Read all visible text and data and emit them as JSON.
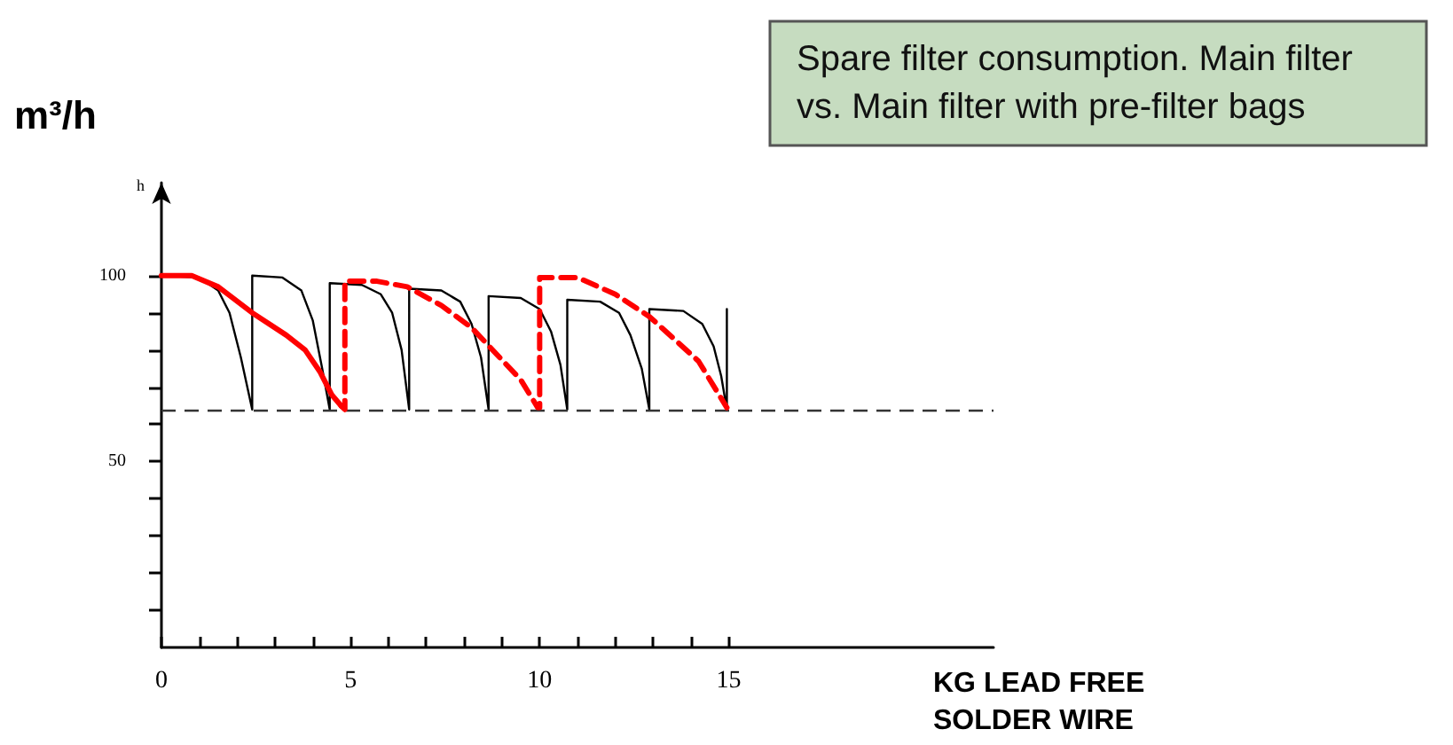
{
  "chart_data": {
    "type": "line",
    "title": "Spare filter consumption. Main filter vs. Main filter with pre-filter bags",
    "xlabel": "KG LEAD FREE SOLDER WIRE",
    "ylabel": "m³/h",
    "annotations": [
      "h"
    ],
    "xlim": [
      0,
      22
    ],
    "xticks": [
      0,
      {
        "value": 1,
        "label": null
      },
      {
        "value": 2,
        "label": null
      },
      {
        "value": 3,
        "label": null
      },
      {
        "value": 4,
        "label": null
      },
      5,
      {
        "value": 6,
        "label": null
      },
      {
        "value": 7,
        "label": null
      },
      {
        "value": 8,
        "label": null
      },
      {
        "value": 9,
        "label": null
      },
      10,
      {
        "value": 11,
        "label": null
      },
      {
        "value": 12,
        "label": null
      },
      {
        "value": 13,
        "label": null
      },
      {
        "value": 14,
        "label": null
      },
      15
    ],
    "ylim": [
      0,
      125
    ],
    "yticks": [
      {
        "value": 10,
        "label": null
      },
      {
        "value": 20,
        "label": null
      },
      {
        "value": 30,
        "label": null
      },
      {
        "value": 40,
        "label": null
      },
      50,
      {
        "value": 60,
        "label": null
      },
      {
        "value": 70,
        "label": null
      },
      {
        "value": 80,
        "label": null
      },
      {
        "value": 90,
        "label": null
      },
      100
    ],
    "grid": false,
    "marker": "none",
    "series": [
      {
        "color": "#000000",
        "line_style": "solid",
        "x": [
          0,
          1,
          1.5,
          1.8,
          2.1,
          2.4,
          2.4,
          3.2,
          3.7,
          4.0,
          4.25,
          4.45,
          4.45,
          5.3,
          5.8,
          6.1,
          6.35,
          6.55,
          6.55,
          7.4,
          7.9,
          8.2,
          8.45,
          8.65,
          8.65,
          9.5,
          10,
          10.3,
          10.55,
          10.73,
          10.73,
          11.6,
          12.1,
          12.4,
          12.7,
          12.9,
          12.9,
          13.8,
          14.3,
          14.6,
          14.8,
          14.95,
          14.95
        ],
        "values": [
          100,
          99.5,
          96,
          90,
          78,
          64,
          100,
          99.5,
          96,
          88,
          75,
          64,
          98,
          97.5,
          95,
          90,
          80,
          64,
          96.5,
          96,
          93,
          87,
          78,
          64,
          94.5,
          94,
          91,
          85,
          76,
          64,
          93.5,
          93,
          90,
          84,
          75,
          64,
          91,
          90.5,
          87,
          81,
          73,
          64,
          91
        ]
      },
      {
        "color": "#ff0000",
        "line_style": "solid",
        "x": [
          0,
          0.8,
          1.5,
          2.4,
          3.3,
          3.8,
          4.2,
          4.5,
          4.75
        ],
        "values": [
          100,
          100,
          97,
          90,
          84,
          80,
          74,
          68,
          65
        ]
      },
      {
        "color": "#ff0000",
        "line_style": "dashed",
        "x": [
          4.75,
          4.85,
          4.85,
          5.7,
          6.5,
          7.4,
          8.2,
          9.5,
          9.95,
          10,
          10,
          11,
          12,
          12.9,
          14.2,
          14.95
        ],
        "values": [
          65,
          64,
          98.5,
          98.5,
          97,
          92,
          86,
          72,
          64.5,
          64.5,
          99.5,
          99.5,
          95,
          89,
          77,
          64.5
        ]
      }
    ],
    "ref_lines": [
      {
        "axis": "y",
        "value": 64,
        "color": "#333333",
        "line_style": "dashed"
      }
    ]
  }
}
